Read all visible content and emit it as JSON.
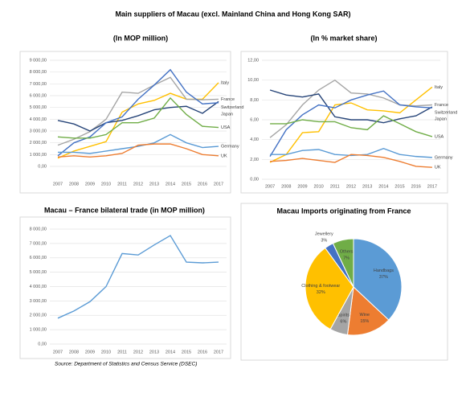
{
  "title": "Main suppliers of Macau (excl. Mainland China and Hong Kong SAR)",
  "source": "Source: Department of Statistics and Census Service (DSEC)",
  "chart_data": [
    {
      "type": "line",
      "subtitle": "(In MOP million)",
      "categories": [
        "2007",
        "2008",
        "2009",
        "2010",
        "2011",
        "2012",
        "2013",
        "2014",
        "2015",
        "2016",
        "2017"
      ],
      "ylim": [
        0,
        9000
      ],
      "yticks": [
        {
          "value": 0,
          "label": "0,00"
        },
        {
          "value": 1000,
          "label": "1 000,00"
        },
        {
          "value": 2000,
          "label": "2 000,00"
        },
        {
          "value": 3000,
          "label": "3 000,00"
        },
        {
          "value": 4000,
          "label": "4 000,00"
        },
        {
          "value": 5000,
          "label": "5 000,00"
        },
        {
          "value": 6000,
          "label": "6 000,00"
        },
        {
          "value": 7000,
          "label": "7 000,00"
        },
        {
          "value": 8000,
          "label": "8 000,00"
        },
        {
          "value": 9000,
          "label": "9 000,00"
        }
      ],
      "grid": true,
      "series": [
        {
          "name": "Italy",
          "color": "#ffc000",
          "values": [
            700,
            1300,
            1700,
            2100,
            4600,
            5300,
            5600,
            6200,
            5700,
            5700,
            7100
          ]
        },
        {
          "name": "France",
          "color": "#a5a5a5",
          "values": [
            1800,
            2300,
            2950,
            4000,
            6300,
            6200,
            6900,
            7550,
            5700,
            5650,
            5700
          ]
        },
        {
          "name": "Switzerland",
          "color": "#264478",
          "values": [
            3900,
            3600,
            3000,
            3700,
            3900,
            4300,
            4800,
            5000,
            5100,
            4500,
            5500
          ]
        },
        {
          "name": "Japan",
          "color": "#4472c4",
          "values": [
            900,
            2000,
            2500,
            3700,
            4200,
            5700,
            6900,
            8200,
            6300,
            5300,
            5400
          ]
        },
        {
          "name": "USA",
          "color": "#70ad47",
          "values": [
            2500,
            2400,
            2400,
            2700,
            3700,
            3700,
            4100,
            5800,
            4400,
            3400,
            3300
          ]
        },
        {
          "name": "Germany",
          "color": "#5b9bd5",
          "values": [
            1200,
            1200,
            1100,
            1300,
            1500,
            1700,
            2000,
            2700,
            2000,
            1600,
            1700
          ]
        },
        {
          "name": "UK",
          "color": "#ed7d31",
          "values": [
            800,
            900,
            800,
            900,
            1100,
            1800,
            1900,
            1900,
            1500,
            1000,
            900
          ]
        }
      ]
    },
    {
      "type": "line",
      "subtitle": "(In % market share)",
      "categories": [
        "2007",
        "2008",
        "2009",
        "2010",
        "2011",
        "2012",
        "2013",
        "2014",
        "2015",
        "2016",
        "2017"
      ],
      "ylim": [
        0,
        12
      ],
      "yticks": [
        {
          "value": 0,
          "label": "0,00"
        },
        {
          "value": 2,
          "label": "2,00"
        },
        {
          "value": 4,
          "label": "4,00"
        },
        {
          "value": 6,
          "label": "6,00"
        },
        {
          "value": 8,
          "label": "8,00"
        },
        {
          "value": 10,
          "label": "10,00"
        },
        {
          "value": 12,
          "label": "12,00"
        }
      ],
      "grid": true,
      "series": [
        {
          "name": "Italy",
          "color": "#ffc000",
          "values": [
            1.7,
            2.5,
            4.7,
            4.8,
            7.5,
            7.7,
            7.0,
            6.9,
            6.7,
            8.0,
            9.3
          ]
        },
        {
          "name": "France",
          "color": "#a5a5a5",
          "values": [
            4.2,
            5.5,
            7.5,
            9.0,
            10.0,
            8.7,
            8.6,
            8.2,
            7.5,
            7.4,
            7.5
          ]
        },
        {
          "name": "Switzerland",
          "color": "#264478",
          "values": [
            9.0,
            8.5,
            8.3,
            8.6,
            6.3,
            6.0,
            6.0,
            5.7,
            6.1,
            6.4,
            7.3
          ]
        },
        {
          "name": "Japan",
          "color": "#4472c4",
          "values": [
            2.3,
            5.0,
            6.5,
            7.5,
            7.2,
            8.0,
            8.5,
            8.9,
            7.5,
            7.3,
            7.2
          ]
        },
        {
          "name": "USA",
          "color": "#70ad47",
          "values": [
            5.6,
            5.6,
            6.0,
            5.8,
            5.8,
            5.2,
            5.0,
            6.4,
            5.6,
            4.8,
            4.3
          ]
        },
        {
          "name": "Germany",
          "color": "#5b9bd5",
          "values": [
            2.5,
            2.5,
            2.9,
            3.0,
            2.5,
            2.4,
            2.5,
            3.1,
            2.5,
            2.3,
            2.2
          ]
        },
        {
          "name": "UK",
          "color": "#ed7d31",
          "values": [
            1.8,
            1.9,
            2.1,
            1.9,
            1.7,
            2.5,
            2.4,
            2.2,
            1.8,
            1.3,
            1.2
          ]
        }
      ]
    },
    {
      "type": "line",
      "title": "Macau – France bilateral trade (in MOP million)",
      "categories": [
        "2007",
        "2008",
        "2009",
        "2010",
        "2011",
        "2012",
        "2013",
        "2014",
        "2015",
        "2016",
        "2017"
      ],
      "ylim": [
        0,
        8000
      ],
      "yticks": [
        {
          "value": 0,
          "label": "0,00"
        },
        {
          "value": 1000,
          "label": "1 000,00"
        },
        {
          "value": 2000,
          "label": "2 000,00"
        },
        {
          "value": 3000,
          "label": "3 000,00"
        },
        {
          "value": 4000,
          "label": "4 000,00"
        },
        {
          "value": 5000,
          "label": "5 000,00"
        },
        {
          "value": 6000,
          "label": "6 000,00"
        },
        {
          "value": 7000,
          "label": "7 000,00"
        },
        {
          "value": 8000,
          "label": "8 000,00"
        }
      ],
      "grid": true,
      "series": [
        {
          "color": "#5b9bd5",
          "values": [
            1800,
            2300,
            2950,
            4000,
            6300,
            6200,
            6900,
            7550,
            5700,
            5650,
            5700
          ]
        }
      ]
    },
    {
      "type": "pie",
      "title": "Macau Imports originating from France",
      "categories": [
        "Handbags",
        "Wine",
        "Spirits",
        "Clothing & footwear",
        "Jewellery",
        "Others"
      ],
      "values": [
        37,
        15,
        6,
        32,
        3,
        7
      ],
      "value_labels": [
        "37%",
        "15%",
        "6%",
        "32%",
        "3%",
        "7%"
      ],
      "colors": [
        "#5b9bd5",
        "#ed7d31",
        "#a5a5a5",
        "#ffc000",
        "#4472c4",
        "#70ad47"
      ]
    }
  ]
}
